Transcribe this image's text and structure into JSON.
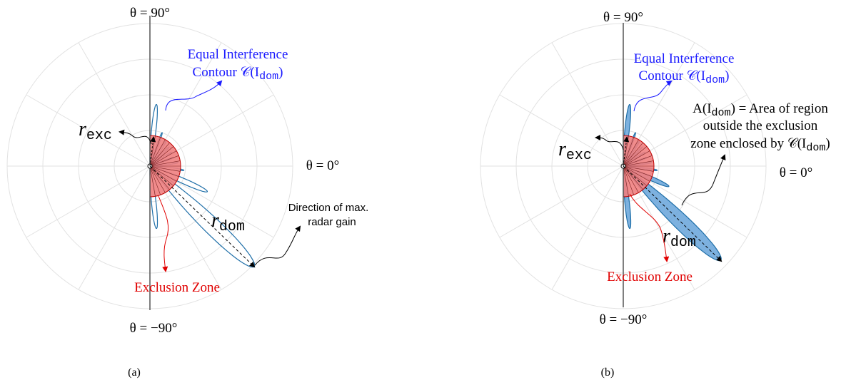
{
  "panels": [
    {
      "theta_top": "θ = 90°",
      "theta_right": "θ = 0°",
      "theta_bottom": "θ = −90°",
      "contour_line1": "Equal Interference",
      "contour_line2": {
        "text": "Contour 𝒞(I",
        "sub": "dom",
        "after": ")"
      },
      "r_exc": {
        "text": "r",
        "sub": "exc"
      },
      "r_dom": {
        "text": "r",
        "sub": "dom"
      },
      "direction_line1": "Direction of max.",
      "direction_line2": "radar gain",
      "exclusion": "Exclusion Zone",
      "caption": "(a)"
    },
    {
      "theta_top": "θ = 90°",
      "theta_right": "θ = 0°",
      "theta_bottom": "θ = −90°",
      "contour_line1": "Equal Interference",
      "contour_line2": {
        "text": "Contour 𝒞(I",
        "sub": "dom",
        "after": ")"
      },
      "r_exc": {
        "text": "r",
        "sub": "exc"
      },
      "r_dom": {
        "text": "r",
        "sub": "dom"
      },
      "area_line1": {
        "text": "A(I",
        "sub": "dom",
        "after": ") = Area of region"
      },
      "area_line2": "outside the exclusion",
      "area_line3": {
        "text": "zone enclosed by 𝒞(I",
        "sub": "dom",
        "after": ")"
      },
      "exclusion": "Exclusion Zone",
      "caption": "(b)"
    }
  ]
}
